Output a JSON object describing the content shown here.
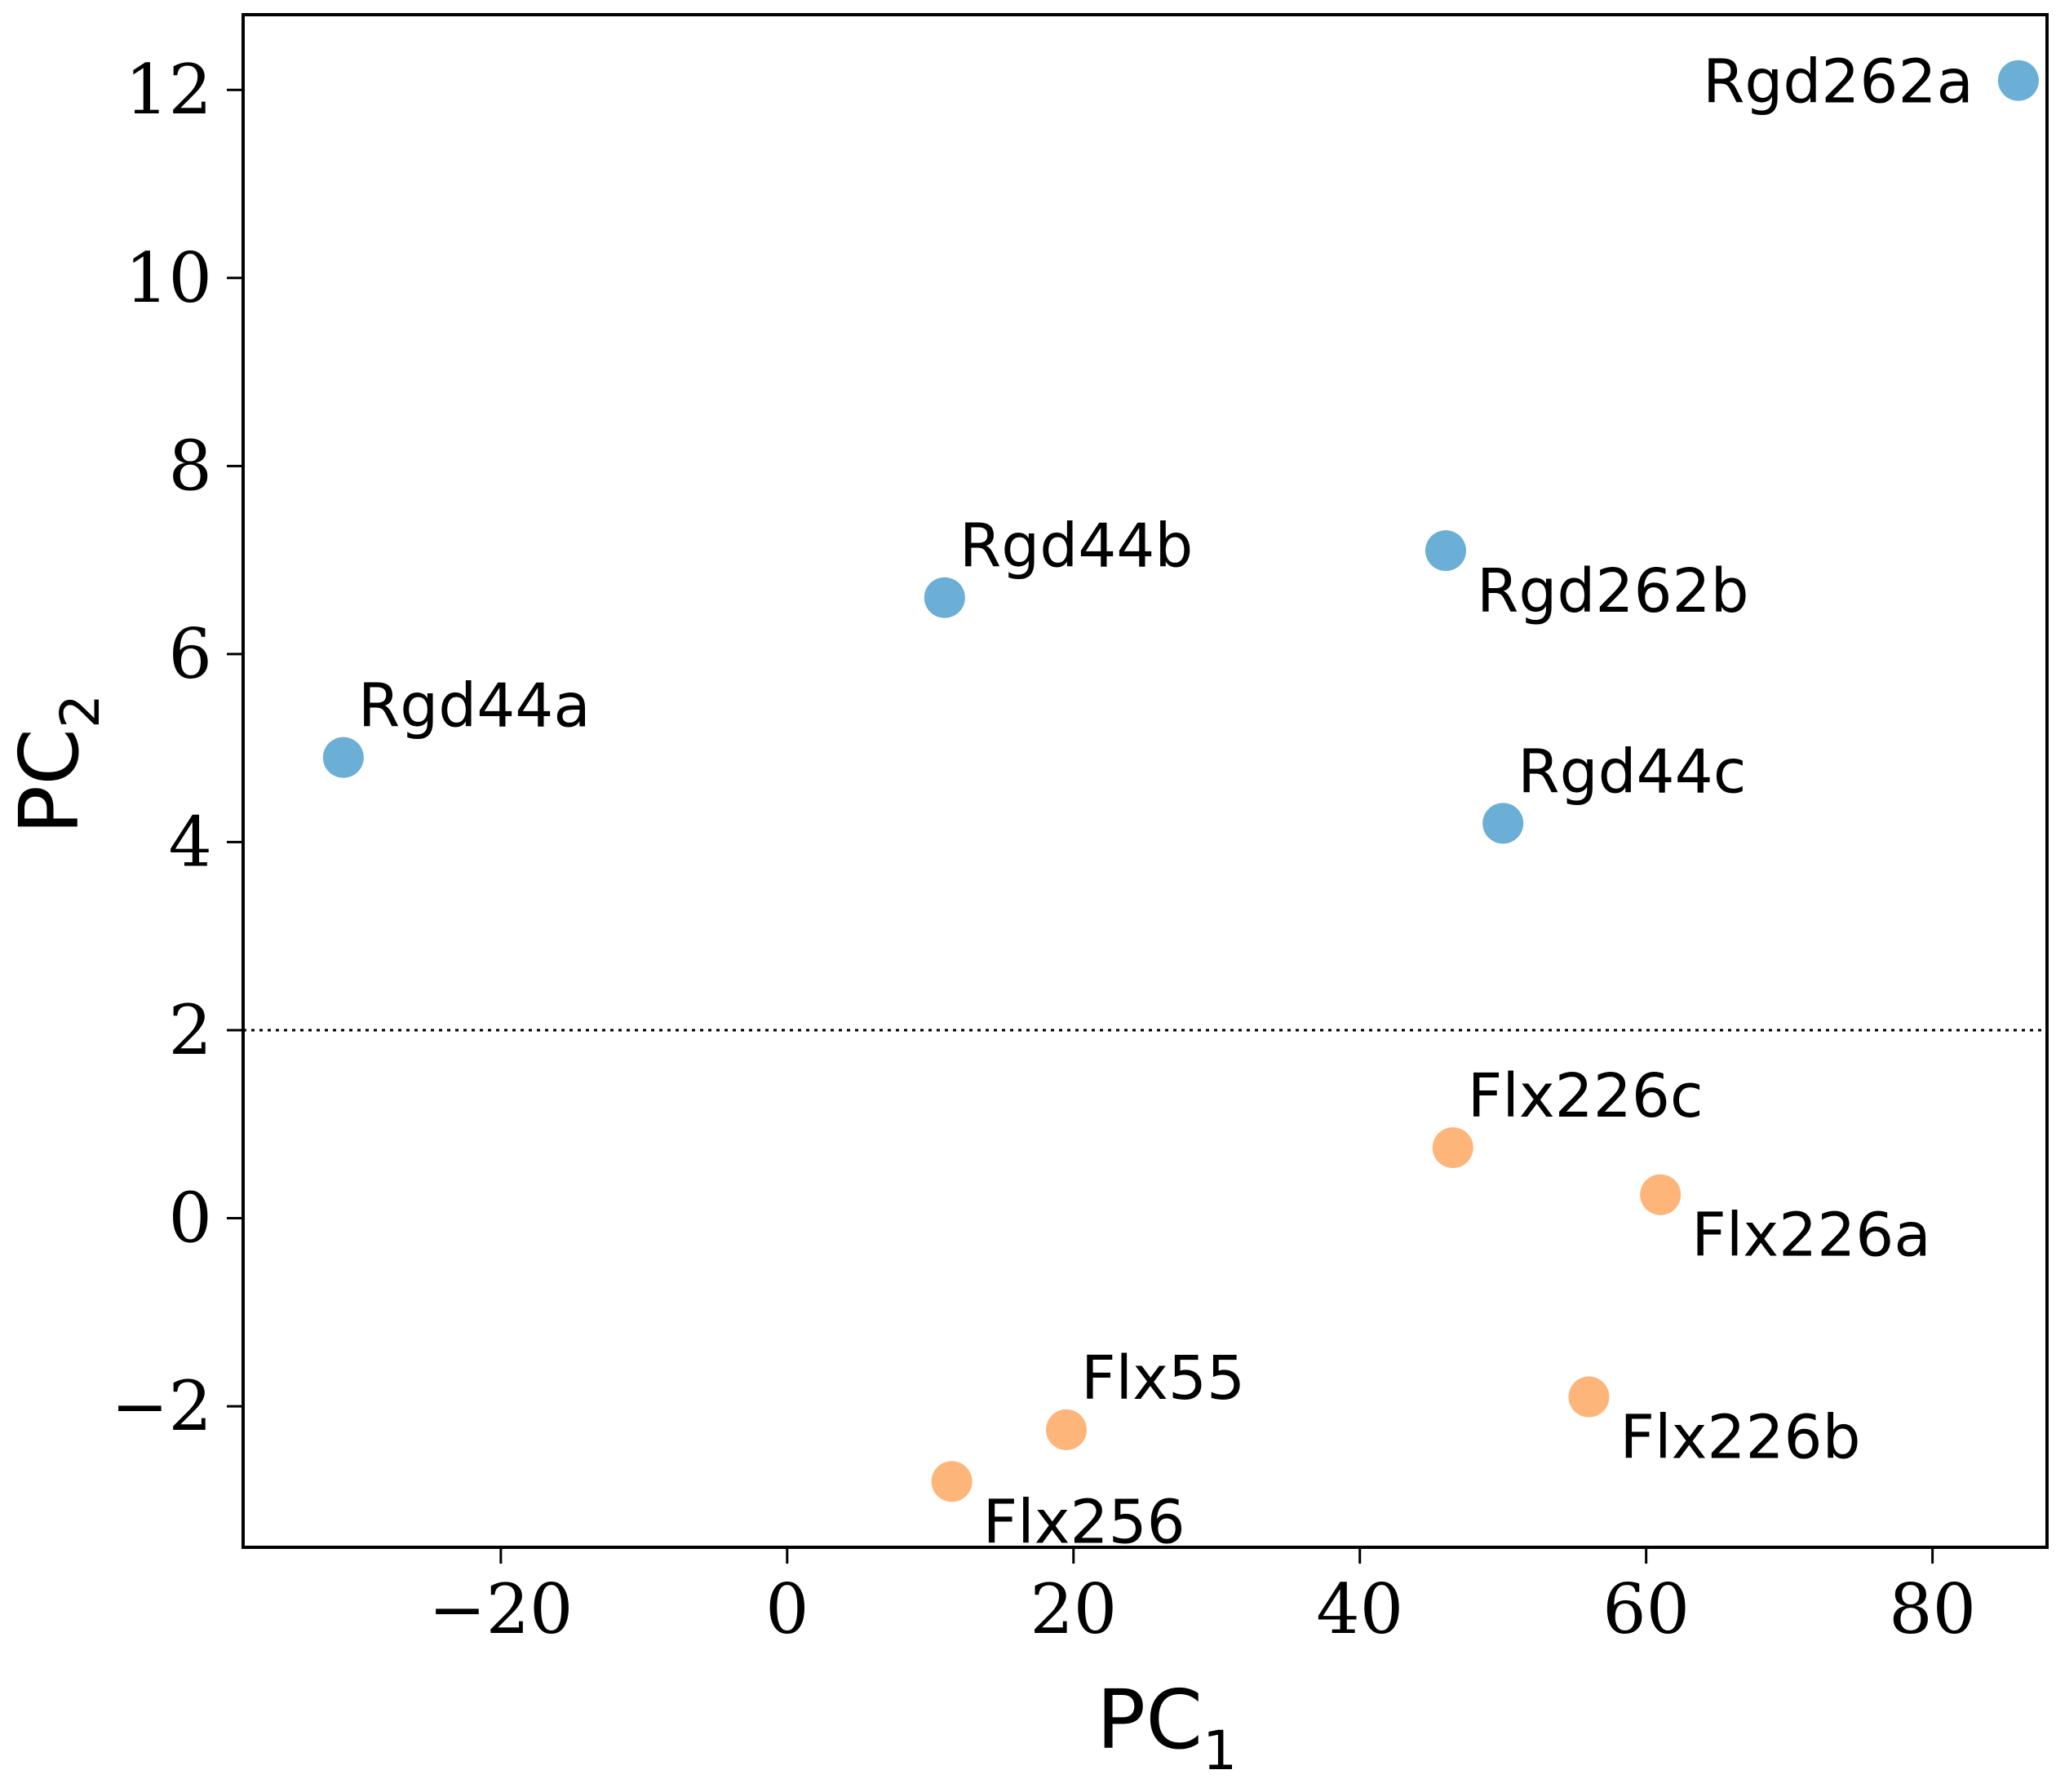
{
  "chart_data": {
    "type": "scatter",
    "title": "",
    "xlabel": {
      "main": "PC",
      "sub": "1"
    },
    "ylabel": {
      "main": "PC",
      "sub": "2"
    },
    "xlim": [
      -38,
      88
    ],
    "ylim": [
      -3.5,
      12.8
    ],
    "xticks": [
      -20,
      0,
      20,
      40,
      60,
      80
    ],
    "yticks": [
      -2,
      0,
      2,
      4,
      6,
      8,
      10,
      12
    ],
    "xtick_labels": [
      "−20",
      "0",
      "20",
      "40",
      "60",
      "80"
    ],
    "ytick_labels": [
      "−2",
      "0",
      "2",
      "4",
      "6",
      "8",
      "10",
      "12"
    ],
    "grid": false,
    "threshold_line": {
      "y": 2,
      "style": "dotted"
    },
    "series": [
      {
        "name": "Rgd",
        "color": "#6baed6",
        "points": [
          {
            "label": "Rgd262a",
            "x": 86,
            "y": 12.1,
            "anchor": "left"
          },
          {
            "label": "Rgd44b",
            "x": 11,
            "y": 6.6,
            "anchor": "above-right"
          },
          {
            "label": "Rgd262b",
            "x": 46,
            "y": 7.1,
            "anchor": "below-right"
          },
          {
            "label": "Rgd44a",
            "x": -31,
            "y": 4.9,
            "anchor": "above-right"
          },
          {
            "label": "Rgd44c",
            "x": 50,
            "y": 4.2,
            "anchor": "above-right"
          }
        ]
      },
      {
        "name": "Flx",
        "color": "#fdb57a",
        "points": [
          {
            "label": "Flx226c",
            "x": 46.5,
            "y": 0.75,
            "anchor": "above-right"
          },
          {
            "label": "Flx226a",
            "x": 61,
            "y": 0.25,
            "anchor": "below-right"
          },
          {
            "label": "Flx226b",
            "x": 56,
            "y": -1.9,
            "anchor": "below-right"
          },
          {
            "label": "Flx55",
            "x": 19.5,
            "y": -2.25,
            "anchor": "above-right"
          },
          {
            "label": "Flx256",
            "x": 11.5,
            "y": -2.8,
            "anchor": "below-right"
          }
        ]
      }
    ]
  }
}
